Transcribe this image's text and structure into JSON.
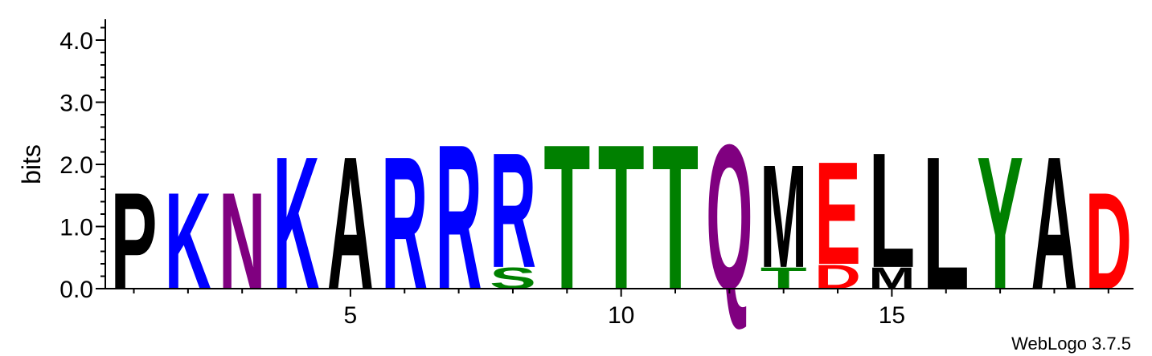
{
  "chart_data": {
    "type": "sequence-logo",
    "ylabel": "bits",
    "ylim": [
      0,
      4.3
    ],
    "y_ticks": [
      "0.0",
      "1.0",
      "2.0",
      "3.0",
      "4.0"
    ],
    "x_ticks": [
      "5",
      "10",
      "15"
    ],
    "x_tick_values": [
      5,
      10,
      15
    ],
    "positions": 19,
    "colors": {
      "P": "#000000",
      "A": "#000000",
      "L": "#000000",
      "M": "#000000",
      "K": "#0000ff",
      "R": "#0000ff",
      "N": "#800080",
      "Q": "#800080",
      "S": "#008000",
      "T": "#008000",
      "Y": "#008000",
      "D": "#ff0000",
      "E": "#ff0000"
    },
    "stacks": [
      {
        "position": 1,
        "letters": [
          {
            "letter": "P",
            "bits": 1.6
          }
        ]
      },
      {
        "position": 2,
        "letters": [
          {
            "letter": "K",
            "bits": 1.6
          }
        ]
      },
      {
        "position": 3,
        "letters": [
          {
            "letter": "N",
            "bits": 1.6
          }
        ]
      },
      {
        "position": 4,
        "letters": [
          {
            "letter": "K",
            "bits": 2.2
          }
        ]
      },
      {
        "position": 5,
        "letters": [
          {
            "letter": "A",
            "bits": 2.2
          }
        ]
      },
      {
        "position": 6,
        "letters": [
          {
            "letter": "R",
            "bits": 2.2
          }
        ]
      },
      {
        "position": 7,
        "letters": [
          {
            "letter": "R",
            "bits": 2.4
          }
        ]
      },
      {
        "position": 8,
        "letters": [
          {
            "letter": "S",
            "bits": 0.35
          },
          {
            "letter": "R",
            "bits": 1.9
          }
        ]
      },
      {
        "position": 9,
        "letters": [
          {
            "letter": "T",
            "bits": 2.4
          }
        ]
      },
      {
        "position": 10,
        "letters": [
          {
            "letter": "T",
            "bits": 2.4
          }
        ]
      },
      {
        "position": 11,
        "letters": [
          {
            "letter": "T",
            "bits": 2.4
          }
        ]
      },
      {
        "position": 12,
        "letters": [
          {
            "letter": "Q",
            "bits": 2.4
          }
        ]
      },
      {
        "position": 13,
        "letters": [
          {
            "letter": "T",
            "bits": 0.35
          },
          {
            "letter": "M",
            "bits": 1.7
          }
        ]
      },
      {
        "position": 14,
        "letters": [
          {
            "letter": "D",
            "bits": 0.4
          },
          {
            "letter": "E",
            "bits": 1.7
          }
        ]
      },
      {
        "position": 15,
        "letters": [
          {
            "letter": "M",
            "bits": 0.35
          },
          {
            "letter": "L",
            "bits": 1.9
          }
        ]
      },
      {
        "position": 16,
        "letters": [
          {
            "letter": "L",
            "bits": 2.2
          }
        ]
      },
      {
        "position": 17,
        "letters": [
          {
            "letter": "Y",
            "bits": 2.2
          }
        ]
      },
      {
        "position": 18,
        "letters": [
          {
            "letter": "A",
            "bits": 2.2
          }
        ]
      },
      {
        "position": 19,
        "letters": [
          {
            "letter": "D",
            "bits": 1.6
          }
        ]
      }
    ]
  },
  "footer": {
    "credit": "WebLogo 3.7.5"
  }
}
